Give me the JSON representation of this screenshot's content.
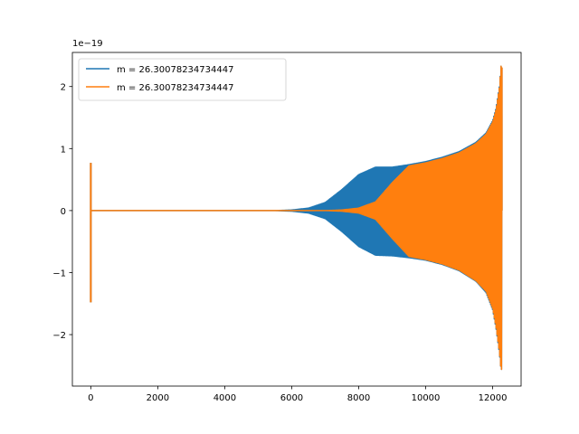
{
  "chart_data": {
    "type": "line",
    "title": "",
    "xlabel": "",
    "ylabel": "",
    "y_scale_label": "1e−19",
    "xlim": [
      -550,
      12850
    ],
    "ylim": [
      -2.83,
      2.55
    ],
    "xticks": [
      0,
      2000,
      4000,
      6000,
      8000,
      10000,
      12000
    ],
    "xtick_labels": [
      "0",
      "2000",
      "4000",
      "6000",
      "8000",
      "10000",
      "12000"
    ],
    "yticks": [
      -2,
      -1,
      0,
      1,
      2
    ],
    "ytick_labels": [
      "−2",
      "−1",
      "0",
      "1",
      "2"
    ],
    "grid": false,
    "legend_position": "upper left",
    "series": [
      {
        "name": "m = 26.30078234734447",
        "color": "#1f77b4",
        "envelope_x": [
          0,
          200,
          5500,
          6000,
          6500,
          7000,
          7500,
          8000,
          8500,
          9000,
          9500,
          10000,
          10500,
          11000,
          11500,
          11800,
          12000,
          12100,
          12200,
          12250,
          12280
        ],
        "envelope_top": [
          0,
          0,
          0,
          0.01,
          0.04,
          0.13,
          0.34,
          0.58,
          0.7,
          0.7,
          0.74,
          0.79,
          0.86,
          0.95,
          1.1,
          1.25,
          1.45,
          1.65,
          2.0,
          2.33,
          2.3
        ],
        "envelope_bottom": [
          0,
          0,
          0,
          -0.01,
          -0.04,
          -0.13,
          -0.34,
          -0.58,
          -0.72,
          -0.73,
          -0.76,
          -0.8,
          -0.87,
          -0.97,
          -1.14,
          -1.32,
          -1.6,
          -1.9,
          -2.3,
          -2.57,
          -2.55
        ]
      },
      {
        "name": "m = 26.30078234734447",
        "color": "#ff7f0e",
        "envelope_x": [
          0,
          200,
          7000,
          7500,
          8000,
          8500,
          9000,
          9500,
          10000,
          10500,
          11000,
          11500,
          11800,
          12000,
          12100,
          12200,
          12250,
          12280
        ],
        "envelope_top": [
          0,
          0,
          0,
          0.01,
          0.04,
          0.14,
          0.45,
          0.72,
          0.77,
          0.84,
          0.93,
          1.08,
          1.23,
          1.43,
          1.63,
          1.98,
          2.33,
          2.3
        ],
        "envelope_bottom": [
          0,
          0,
          0,
          -0.01,
          -0.04,
          -0.14,
          -0.45,
          -0.74,
          -0.79,
          -0.86,
          -0.96,
          -1.13,
          -1.3,
          -1.58,
          -1.88,
          -2.28,
          -2.57,
          -2.55
        ]
      }
    ],
    "initial_spike": {
      "x": 0,
      "top": 0.77,
      "bottom": -1.48
    }
  }
}
